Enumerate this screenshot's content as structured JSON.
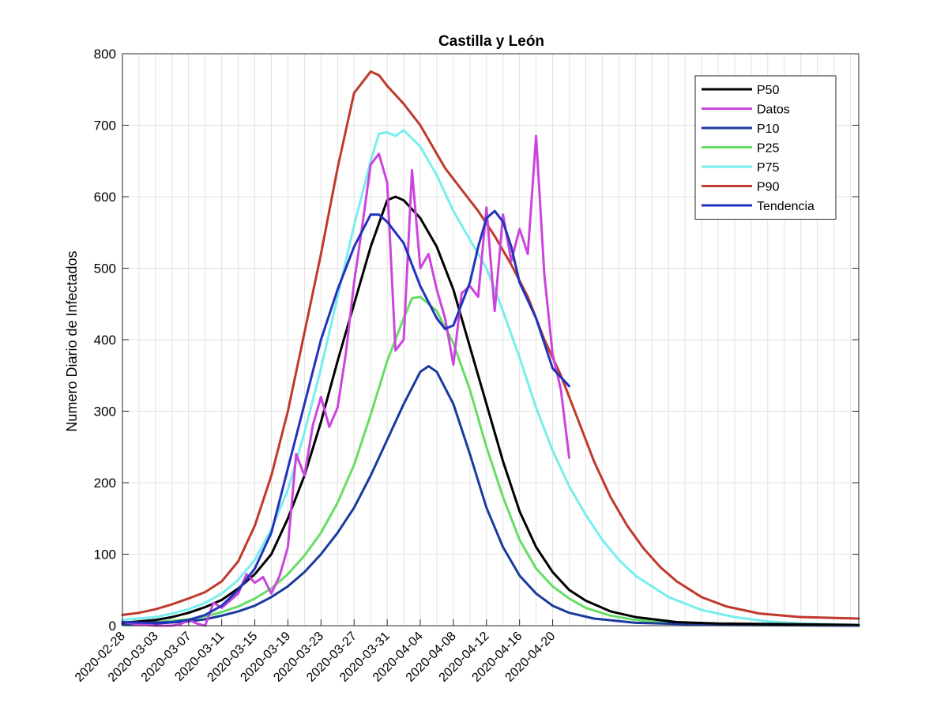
{
  "chart_data": {
    "type": "line",
    "title": "Castilla y León",
    "xlabel": "",
    "ylabel": "Numero Diario de Infectados",
    "ylim": [
      0,
      800
    ],
    "yticks": [
      "0",
      "100",
      "200",
      "300",
      "400",
      "500",
      "600",
      "700",
      "800"
    ],
    "x_start": "2020-02-28",
    "x_end": "2020-05-27",
    "xticks": [
      "2020-02-28",
      "2020-03-03",
      "2020-03-07",
      "2020-03-11",
      "2020-03-15",
      "2020-03-19",
      "2020-03-23",
      "2020-03-27",
      "2020-03-31",
      "2020-04-04",
      "2020-04-08",
      "2020-04-12",
      "2020-04-16",
      "2020-04-20"
    ],
    "grid": true,
    "legend_position": "top-right",
    "series": [
      {
        "name": "P50",
        "color": "#000000",
        "points": [
          [
            "2020-02-28",
            4
          ],
          [
            "2020-03-01",
            6
          ],
          [
            "2020-03-03",
            8
          ],
          [
            "2020-03-05",
            12
          ],
          [
            "2020-03-07",
            18
          ],
          [
            "2020-03-09",
            26
          ],
          [
            "2020-03-11",
            36
          ],
          [
            "2020-03-13",
            52
          ],
          [
            "2020-03-15",
            72
          ],
          [
            "2020-03-17",
            100
          ],
          [
            "2020-03-19",
            150
          ],
          [
            "2020-03-21",
            210
          ],
          [
            "2020-03-23",
            285
          ],
          [
            "2020-03-25",
            370
          ],
          [
            "2020-03-27",
            450
          ],
          [
            "2020-03-29",
            530
          ],
          [
            "2020-03-31",
            595
          ],
          [
            "2020-04-01",
            600
          ],
          [
            "2020-04-02",
            595
          ],
          [
            "2020-04-04",
            570
          ],
          [
            "2020-04-06",
            530
          ],
          [
            "2020-04-08",
            470
          ],
          [
            "2020-04-10",
            390
          ],
          [
            "2020-04-12",
            310
          ],
          [
            "2020-04-14",
            230
          ],
          [
            "2020-04-16",
            160
          ],
          [
            "2020-04-18",
            110
          ],
          [
            "2020-04-20",
            75
          ],
          [
            "2020-04-22",
            50
          ],
          [
            "2020-04-24",
            35
          ],
          [
            "2020-04-27",
            20
          ],
          [
            "2020-04-30",
            12
          ],
          [
            "2020-05-05",
            5
          ],
          [
            "2020-05-10",
            3
          ],
          [
            "2020-05-20",
            2
          ],
          [
            "2020-05-27",
            1
          ]
        ]
      },
      {
        "name": " Datos",
        "color": "#cc44dd",
        "points": [
          [
            "2020-02-28",
            5
          ],
          [
            "2020-03-01",
            2
          ],
          [
            "2020-03-03",
            0
          ],
          [
            "2020-03-05",
            0
          ],
          [
            "2020-03-06",
            2
          ],
          [
            "2020-03-07",
            8
          ],
          [
            "2020-03-08",
            3
          ],
          [
            "2020-03-09",
            0
          ],
          [
            "2020-03-10",
            32
          ],
          [
            "2020-03-11",
            25
          ],
          [
            "2020-03-12",
            35
          ],
          [
            "2020-03-13",
            45
          ],
          [
            "2020-03-14",
            72
          ],
          [
            "2020-03-15",
            60
          ],
          [
            "2020-03-16",
            68
          ],
          [
            "2020-03-17",
            45
          ],
          [
            "2020-03-18",
            70
          ],
          [
            "2020-03-19",
            110
          ],
          [
            "2020-03-20",
            240
          ],
          [
            "2020-03-21",
            210
          ],
          [
            "2020-03-22",
            280
          ],
          [
            "2020-03-23",
            320
          ],
          [
            "2020-03-24",
            278
          ],
          [
            "2020-03-25",
            305
          ],
          [
            "2020-03-26",
            380
          ],
          [
            "2020-03-27",
            480
          ],
          [
            "2020-03-28",
            560
          ],
          [
            "2020-03-29",
            645
          ],
          [
            "2020-03-30",
            660
          ],
          [
            "2020-03-31",
            620
          ],
          [
            "2020-04-01",
            385
          ],
          [
            "2020-04-02",
            400
          ],
          [
            "2020-04-03",
            637
          ],
          [
            "2020-04-04",
            500
          ],
          [
            "2020-04-05",
            520
          ],
          [
            "2020-04-06",
            470
          ],
          [
            "2020-04-07",
            430
          ],
          [
            "2020-04-08",
            365
          ],
          [
            "2020-04-09",
            465
          ],
          [
            "2020-04-10",
            475
          ],
          [
            "2020-04-11",
            460
          ],
          [
            "2020-04-12",
            585
          ],
          [
            "2020-04-13",
            440
          ],
          [
            "2020-04-14",
            575
          ],
          [
            "2020-04-15",
            510
          ],
          [
            "2020-04-16",
            555
          ],
          [
            "2020-04-17",
            520
          ],
          [
            "2020-04-18",
            685
          ],
          [
            "2020-04-19",
            490
          ],
          [
            "2020-04-20",
            380
          ],
          [
            "2020-04-21",
            330
          ],
          [
            "2020-04-22",
            235
          ]
        ]
      },
      {
        "name": "P10",
        "color": "#1a3a9c",
        "points": [
          [
            "2020-02-28",
            2
          ],
          [
            "2020-03-03",
            3
          ],
          [
            "2020-03-07",
            6
          ],
          [
            "2020-03-09",
            9
          ],
          [
            "2020-03-11",
            14
          ],
          [
            "2020-03-13",
            20
          ],
          [
            "2020-03-15",
            28
          ],
          [
            "2020-03-17",
            40
          ],
          [
            "2020-03-19",
            55
          ],
          [
            "2020-03-21",
            75
          ],
          [
            "2020-03-23",
            100
          ],
          [
            "2020-03-25",
            130
          ],
          [
            "2020-03-27",
            165
          ],
          [
            "2020-03-29",
            210
          ],
          [
            "2020-03-31",
            260
          ],
          [
            "2020-04-02",
            310
          ],
          [
            "2020-04-04",
            355
          ],
          [
            "2020-04-05",
            363
          ],
          [
            "2020-04-06",
            355
          ],
          [
            "2020-04-08",
            310
          ],
          [
            "2020-04-10",
            240
          ],
          [
            "2020-04-12",
            165
          ],
          [
            "2020-04-14",
            110
          ],
          [
            "2020-04-16",
            70
          ],
          [
            "2020-04-18",
            45
          ],
          [
            "2020-04-20",
            28
          ],
          [
            "2020-04-22",
            18
          ],
          [
            "2020-04-25",
            10
          ],
          [
            "2020-04-30",
            4
          ],
          [
            "2020-05-10",
            1
          ],
          [
            "2020-05-27",
            0
          ]
        ]
      },
      {
        "name": "P25",
        "color": "#66dd66",
        "points": [
          [
            "2020-02-28",
            3
          ],
          [
            "2020-03-03",
            5
          ],
          [
            "2020-03-07",
            9
          ],
          [
            "2020-03-09",
            13
          ],
          [
            "2020-03-11",
            19
          ],
          [
            "2020-03-13",
            27
          ],
          [
            "2020-03-15",
            38
          ],
          [
            "2020-03-17",
            52
          ],
          [
            "2020-03-19",
            72
          ],
          [
            "2020-03-21",
            98
          ],
          [
            "2020-03-23",
            130
          ],
          [
            "2020-03-25",
            172
          ],
          [
            "2020-03-27",
            225
          ],
          [
            "2020-03-29",
            295
          ],
          [
            "2020-03-31",
            370
          ],
          [
            "2020-04-02",
            430
          ],
          [
            "2020-04-03",
            458
          ],
          [
            "2020-04-04",
            460
          ],
          [
            "2020-04-06",
            440
          ],
          [
            "2020-04-08",
            395
          ],
          [
            "2020-04-10",
            330
          ],
          [
            "2020-04-12",
            250
          ],
          [
            "2020-04-14",
            180
          ],
          [
            "2020-04-16",
            120
          ],
          [
            "2020-04-18",
            80
          ],
          [
            "2020-04-20",
            55
          ],
          [
            "2020-04-22",
            38
          ],
          [
            "2020-04-24",
            25
          ],
          [
            "2020-04-27",
            14
          ],
          [
            "2020-04-30",
            8
          ],
          [
            "2020-05-05",
            3
          ],
          [
            "2020-05-15",
            1
          ],
          [
            "2020-05-27",
            0
          ]
        ]
      },
      {
        "name": "P75",
        "color": "#77eeee",
        "points": [
          [
            "2020-02-28",
            8
          ],
          [
            "2020-03-03",
            12
          ],
          [
            "2020-03-05",
            17
          ],
          [
            "2020-03-07",
            23
          ],
          [
            "2020-03-09",
            32
          ],
          [
            "2020-03-11",
            45
          ],
          [
            "2020-03-13",
            64
          ],
          [
            "2020-03-15",
            92
          ],
          [
            "2020-03-17",
            135
          ],
          [
            "2020-03-19",
            190
          ],
          [
            "2020-03-21",
            270
          ],
          [
            "2020-03-23",
            360
          ],
          [
            "2020-03-25",
            460
          ],
          [
            "2020-03-27",
            560
          ],
          [
            "2020-03-29",
            650
          ],
          [
            "2020-03-30",
            688
          ],
          [
            "2020-03-31",
            690
          ],
          [
            "2020-04-01",
            685
          ],
          [
            "2020-04-02",
            693
          ],
          [
            "2020-04-04",
            670
          ],
          [
            "2020-04-06",
            630
          ],
          [
            "2020-04-08",
            580
          ],
          [
            "2020-04-10",
            540
          ],
          [
            "2020-04-12",
            500
          ],
          [
            "2020-04-14",
            440
          ],
          [
            "2020-04-16",
            375
          ],
          [
            "2020-04-18",
            305
          ],
          [
            "2020-04-20",
            245
          ],
          [
            "2020-04-22",
            195
          ],
          [
            "2020-04-24",
            155
          ],
          [
            "2020-04-26",
            120
          ],
          [
            "2020-04-28",
            92
          ],
          [
            "2020-04-30",
            70
          ],
          [
            "2020-05-04",
            40
          ],
          [
            "2020-05-08",
            22
          ],
          [
            "2020-05-12",
            12
          ],
          [
            "2020-05-16",
            6
          ],
          [
            "2020-05-20",
            3
          ],
          [
            "2020-05-27",
            1
          ]
        ]
      },
      {
        "name": "P90",
        "color": "#c0392b",
        "points": [
          [
            "2020-02-28",
            15
          ],
          [
            "2020-03-01",
            18
          ],
          [
            "2020-03-03",
            23
          ],
          [
            "2020-03-05",
            30
          ],
          [
            "2020-03-07",
            38
          ],
          [
            "2020-03-09",
            47
          ],
          [
            "2020-03-11",
            62
          ],
          [
            "2020-03-13",
            90
          ],
          [
            "2020-03-15",
            140
          ],
          [
            "2020-03-17",
            210
          ],
          [
            "2020-03-19",
            300
          ],
          [
            "2020-03-21",
            410
          ],
          [
            "2020-03-23",
            520
          ],
          [
            "2020-03-25",
            640
          ],
          [
            "2020-03-27",
            745
          ],
          [
            "2020-03-29",
            775
          ],
          [
            "2020-03-30",
            770
          ],
          [
            "2020-03-31",
            755
          ],
          [
            "2020-04-02",
            730
          ],
          [
            "2020-04-04",
            700
          ],
          [
            "2020-04-06",
            660
          ],
          [
            "2020-04-07",
            640
          ],
          [
            "2020-04-09",
            610
          ],
          [
            "2020-04-11",
            580
          ],
          [
            "2020-04-13",
            545
          ],
          [
            "2020-04-15",
            505
          ],
          [
            "2020-04-17",
            460
          ],
          [
            "2020-04-19",
            400
          ],
          [
            "2020-04-21",
            350
          ],
          [
            "2020-04-23",
            290
          ],
          [
            "2020-04-25",
            230
          ],
          [
            "2020-04-27",
            180
          ],
          [
            "2020-04-29",
            140
          ],
          [
            "2020-05-01",
            108
          ],
          [
            "2020-05-03",
            82
          ],
          [
            "2020-05-05",
            62
          ],
          [
            "2020-05-08",
            40
          ],
          [
            "2020-05-11",
            27
          ],
          [
            "2020-05-15",
            17
          ],
          [
            "2020-05-20",
            12
          ],
          [
            "2020-05-27",
            10
          ]
        ]
      },
      {
        "name": "Tendencia",
        "color": "#2233bb",
        "points": [
          [
            "2020-02-28",
            5
          ],
          [
            "2020-03-02",
            4
          ],
          [
            "2020-03-05",
            5
          ],
          [
            "2020-03-07",
            8
          ],
          [
            "2020-03-09",
            15
          ],
          [
            "2020-03-11",
            28
          ],
          [
            "2020-03-13",
            50
          ],
          [
            "2020-03-15",
            80
          ],
          [
            "2020-03-17",
            130
          ],
          [
            "2020-03-19",
            220
          ],
          [
            "2020-03-21",
            310
          ],
          [
            "2020-03-23",
            400
          ],
          [
            "2020-03-25",
            470
          ],
          [
            "2020-03-27",
            530
          ],
          [
            "2020-03-29",
            575
          ],
          [
            "2020-03-30",
            575
          ],
          [
            "2020-03-31",
            565
          ],
          [
            "2020-04-02",
            535
          ],
          [
            "2020-04-04",
            475
          ],
          [
            "2020-04-06",
            430
          ],
          [
            "2020-04-07",
            415
          ],
          [
            "2020-04-08",
            420
          ],
          [
            "2020-04-10",
            480
          ],
          [
            "2020-04-11",
            530
          ],
          [
            "2020-04-12",
            570
          ],
          [
            "2020-04-13",
            580
          ],
          [
            "2020-04-14",
            565
          ],
          [
            "2020-04-15",
            530
          ],
          [
            "2020-04-16",
            480
          ],
          [
            "2020-04-18",
            430
          ],
          [
            "2020-04-20",
            360
          ],
          [
            "2020-04-22",
            335
          ]
        ]
      }
    ]
  }
}
